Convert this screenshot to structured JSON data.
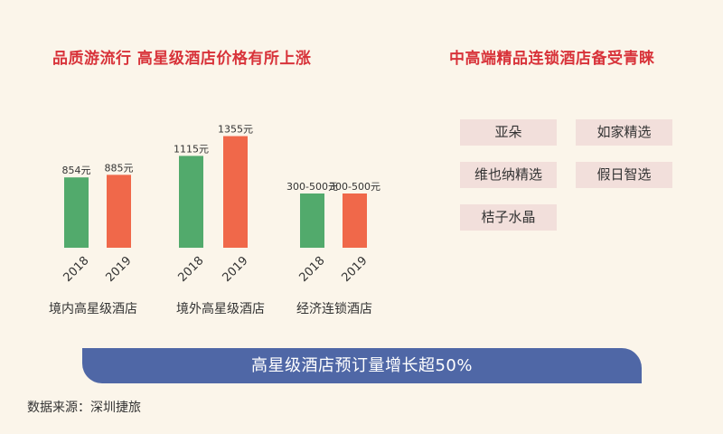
{
  "left_title": "品质游流行 高星级酒店价格有所上涨",
  "right_title": "中高端精品连锁酒店备受青睐",
  "brands": [
    "亚朵",
    "如家精选",
    "维也纳精选",
    "假日智选",
    "桔子水晶"
  ],
  "banner": "高星级酒店预订量增长超50%",
  "source": "数据来源：深圳捷旅",
  "chart_data": {
    "type": "bar",
    "groups": [
      {
        "category": "境内高星级酒店",
        "years": [
          "2018",
          "2019"
        ],
        "values": [
          854,
          885
        ],
        "labels": [
          "854元",
          "885元"
        ]
      },
      {
        "category": "境外高星级酒店",
        "years": [
          "2018",
          "2019"
        ],
        "values": [
          1115,
          1355
        ],
        "labels": [
          "1115元",
          "1355元"
        ]
      },
      {
        "category": "经济连锁酒店",
        "years": [
          "2018",
          "2019"
        ],
        "values": [
          null,
          null
        ],
        "labels": [
          "300-500元",
          "300-500元"
        ]
      }
    ],
    "series_colors": [
      "#52aa6c",
      "#f0684a"
    ]
  }
}
